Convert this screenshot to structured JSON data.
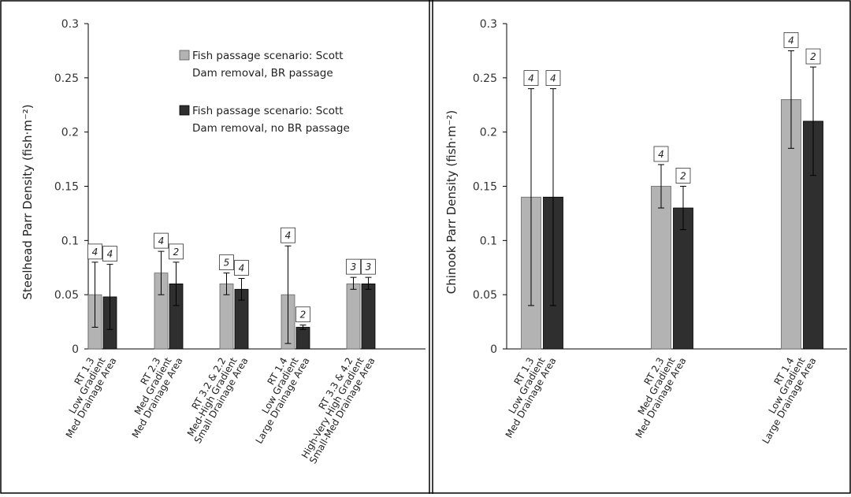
{
  "colors": {
    "light_bar": "#b3b3b3",
    "dark_bar": "#2f2f2f",
    "frame": "#000000"
  },
  "legend": {
    "light_lines": [
      "Fish passage scenario: Scott",
      "Dam removal, BR passage"
    ],
    "dark_lines": [
      "Fish passage scenario: Scott",
      "Dam removal, no BR passage"
    ]
  },
  "chart_data": [
    {
      "type": "bar",
      "ylabel": "Steelhead Parr Density (fish·m⁻²)",
      "ylim": [
        0,
        0.3
      ],
      "yticks": [
        "0",
        "0.05",
        "0.1",
        "0.15",
        "0.2",
        "0.25",
        "0.3"
      ],
      "categories": [
        [
          "RT 1.3",
          "Low Gradient",
          "Med Drainage Area"
        ],
        [
          "RT 2.3",
          "Med Gradient",
          "Med Drainage Area"
        ],
        [
          "RT 3.2 & 2.2",
          "Med-High Gradient",
          "Small Drainage Area"
        ],
        [
          "RT 1.4",
          "Low Gradient",
          "Large Drainage Area"
        ],
        [
          "RT 3.3 & 4.2",
          "High-Very High Gradient",
          "Small-Med Drainage Area"
        ]
      ],
      "series": [
        {
          "style": "light",
          "values": [
            0.05,
            0.07,
            0.06,
            0.05,
            0.06
          ],
          "err_low": [
            0.02,
            0.05,
            0.05,
            0.005,
            0.055
          ],
          "err_high": [
            0.08,
            0.09,
            0.07,
            0.095,
            0.066
          ],
          "n": [
            "4",
            "4",
            "5",
            "4",
            "3"
          ]
        },
        {
          "style": "dark",
          "values": [
            0.048,
            0.06,
            0.055,
            0.02,
            0.06
          ],
          "err_low": [
            0.018,
            0.04,
            0.045,
            0.018,
            0.055
          ],
          "err_high": [
            0.078,
            0.08,
            0.065,
            0.022,
            0.066
          ],
          "n": [
            "4",
            "2",
            "4",
            "2",
            "3"
          ]
        }
      ],
      "grid": false,
      "legend_position": "top-right"
    },
    {
      "type": "bar",
      "ylabel": "Chinook Parr Density (fish·m⁻²)",
      "ylim": [
        0,
        0.3
      ],
      "yticks": [
        "0",
        "0.05",
        "0.1",
        "0.15",
        "0.2",
        "0.25",
        "0.3"
      ],
      "categories": [
        [
          "RT 1.3",
          "Low Gradient",
          "Med Drainage Area"
        ],
        [
          "RT 2.3",
          "Med Gradient",
          "Med Drainage Area"
        ],
        [
          "RT 1.4",
          "Low Gradient",
          "Large Drainage Area"
        ]
      ],
      "series": [
        {
          "style": "light",
          "values": [
            0.14,
            0.15,
            0.23
          ],
          "err_low": [
            0.04,
            0.13,
            0.185
          ],
          "err_high": [
            0.24,
            0.17,
            0.275
          ],
          "n": [
            "4",
            "4",
            "4"
          ]
        },
        {
          "style": "dark",
          "values": [
            0.14,
            0.13,
            0.21
          ],
          "err_low": [
            0.04,
            0.11,
            0.16
          ],
          "err_high": [
            0.24,
            0.15,
            0.26
          ],
          "n": [
            "4",
            "2",
            "2"
          ]
        }
      ],
      "grid": false
    }
  ]
}
